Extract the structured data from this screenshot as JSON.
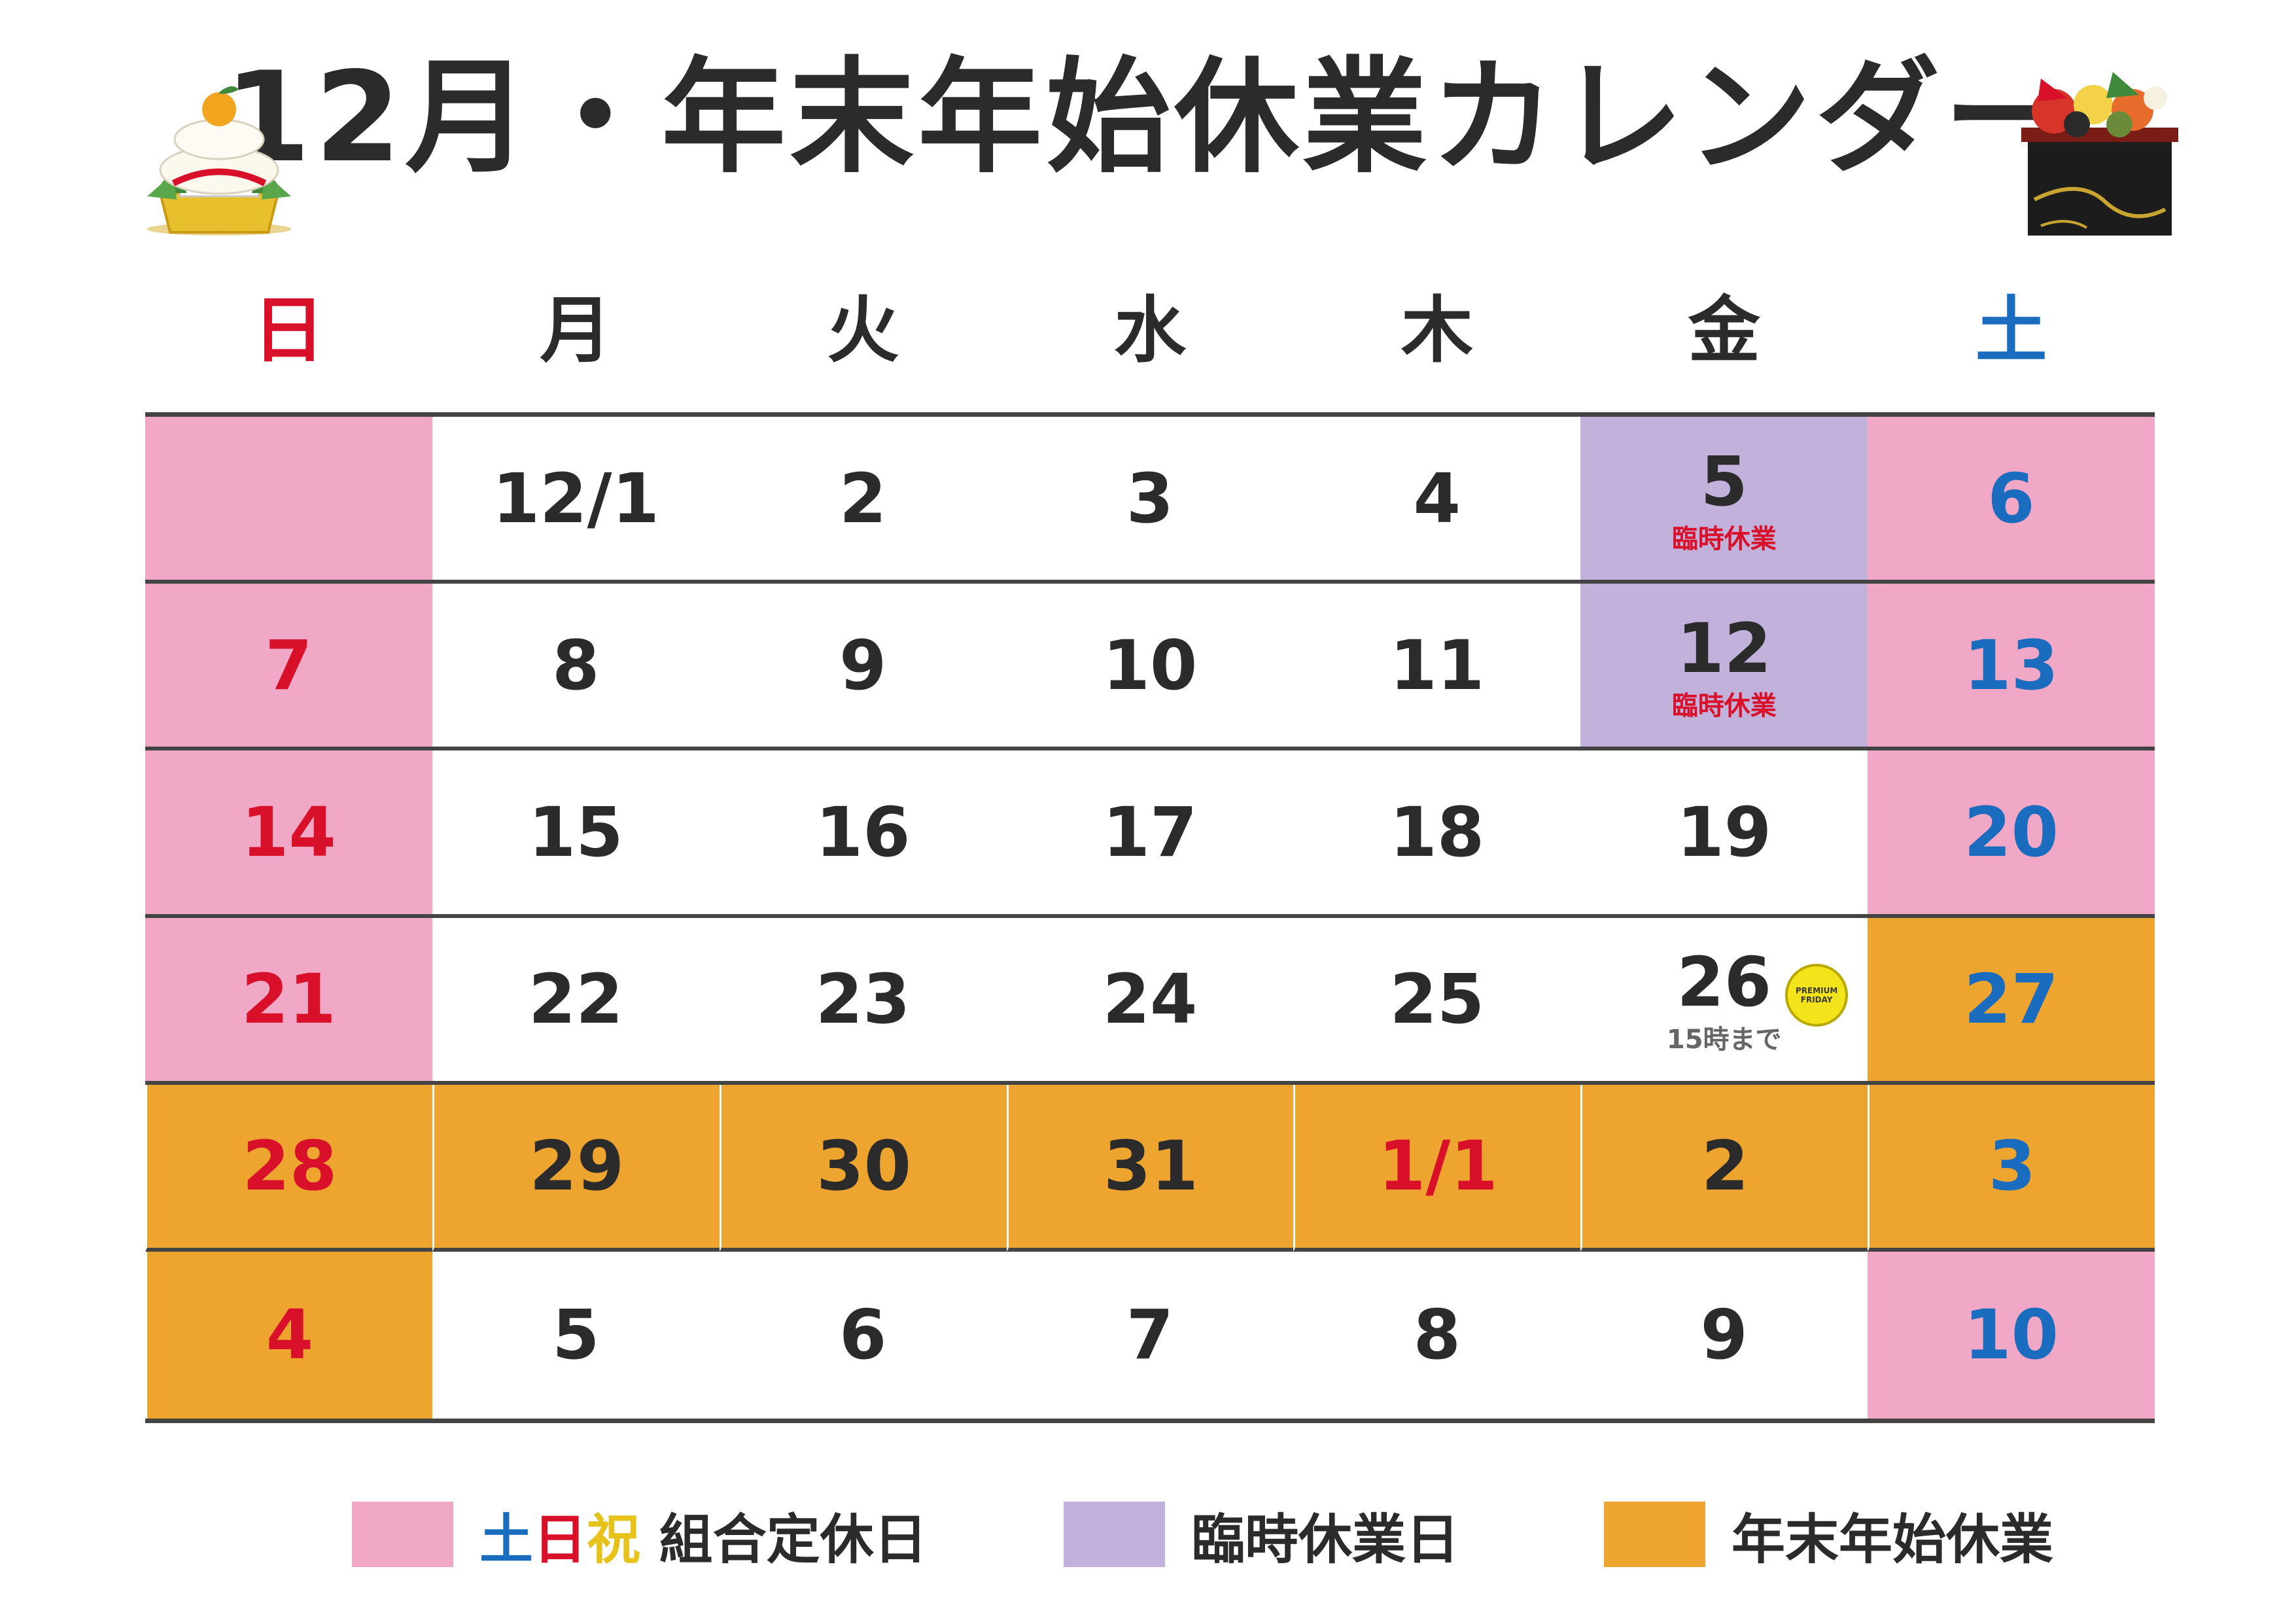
{
  "title": "12月・年末年始休業カレンダー",
  "weekdays": [
    {
      "label": "日",
      "type": "sun"
    },
    {
      "label": "月",
      "type": "wd"
    },
    {
      "label": "火",
      "type": "wd"
    },
    {
      "label": "水",
      "type": "wd"
    },
    {
      "label": "木",
      "type": "wd"
    },
    {
      "label": "金",
      "type": "wd"
    },
    {
      "label": "土",
      "type": "sat"
    }
  ],
  "weeks": [
    [
      {
        "day": "",
        "bg": "pink",
        "color": "red"
      },
      {
        "day": "12/1",
        "bg": "white",
        "color": "black"
      },
      {
        "day": "2",
        "bg": "white",
        "color": "black"
      },
      {
        "day": "3",
        "bg": "white",
        "color": "black"
      },
      {
        "day": "4",
        "bg": "white",
        "color": "black"
      },
      {
        "day": "5",
        "bg": "purple",
        "color": "black",
        "note": "臨時休業"
      },
      {
        "day": "6",
        "bg": "pink",
        "color": "blue"
      }
    ],
    [
      {
        "day": "7",
        "bg": "pink",
        "color": "red"
      },
      {
        "day": "8",
        "bg": "white",
        "color": "black"
      },
      {
        "day": "9",
        "bg": "white",
        "color": "black"
      },
      {
        "day": "10",
        "bg": "white",
        "color": "black"
      },
      {
        "day": "11",
        "bg": "white",
        "color": "black"
      },
      {
        "day": "12",
        "bg": "purple",
        "color": "black",
        "note": "臨時休業"
      },
      {
        "day": "13",
        "bg": "pink",
        "color": "blue"
      }
    ],
    [
      {
        "day": "14",
        "bg": "pink",
        "color": "red"
      },
      {
        "day": "15",
        "bg": "white",
        "color": "black"
      },
      {
        "day": "16",
        "bg": "white",
        "color": "black"
      },
      {
        "day": "17",
        "bg": "white",
        "color": "black"
      },
      {
        "day": "18",
        "bg": "white",
        "color": "black"
      },
      {
        "day": "19",
        "bg": "white",
        "color": "black"
      },
      {
        "day": "20",
        "bg": "pink",
        "color": "blue"
      }
    ],
    [
      {
        "day": "21",
        "bg": "pink",
        "color": "red"
      },
      {
        "day": "22",
        "bg": "white",
        "color": "black"
      },
      {
        "day": "23",
        "bg": "white",
        "color": "black"
      },
      {
        "day": "24",
        "bg": "white",
        "color": "black"
      },
      {
        "day": "25",
        "bg": "white",
        "color": "black"
      },
      {
        "day": "26",
        "bg": "white",
        "color": "black",
        "note": "15時まで",
        "note_style": "gray",
        "badge": true
      },
      {
        "day": "27",
        "bg": "orange",
        "color": "blue"
      }
    ],
    [
      {
        "day": "28",
        "bg": "orange",
        "color": "red"
      },
      {
        "day": "29",
        "bg": "orange",
        "color": "black"
      },
      {
        "day": "30",
        "bg": "orange",
        "color": "black"
      },
      {
        "day": "31",
        "bg": "orange",
        "color": "black"
      },
      {
        "day": "1/1",
        "bg": "orange",
        "color": "red"
      },
      {
        "day": "2",
        "bg": "orange",
        "color": "black"
      },
      {
        "day": "3",
        "bg": "orange",
        "color": "blue"
      }
    ],
    [
      {
        "day": "4",
        "bg": "orange",
        "color": "red"
      },
      {
        "day": "5",
        "bg": "white",
        "color": "black"
      },
      {
        "day": "6",
        "bg": "white",
        "color": "black"
      },
      {
        "day": "7",
        "bg": "white",
        "color": "black"
      },
      {
        "day": "8",
        "bg": "white",
        "color": "black"
      },
      {
        "day": "9",
        "bg": "white",
        "color": "black"
      },
      {
        "day": "10",
        "bg": "pink",
        "color": "blue"
      }
    ]
  ],
  "premium_badge": {
    "line1": "PREMIUM",
    "line2": "FRIDAY"
  },
  "legend": {
    "holiday": {
      "sat": "土",
      "sun": "日",
      "hol": "祝",
      "text": " 組合定休日"
    },
    "temporary": {
      "text": "臨時休業日"
    },
    "new_year": {
      "text": "年末年始休業"
    }
  },
  "colors": {
    "pink": "#f0a8c6",
    "purple": "#c2b1da",
    "orange": "#eea530",
    "red": "#d8102a",
    "blue": "#1a6cbf"
  },
  "icons": {
    "left": "kagami-mochi-icon",
    "right": "osechi-box-icon"
  }
}
